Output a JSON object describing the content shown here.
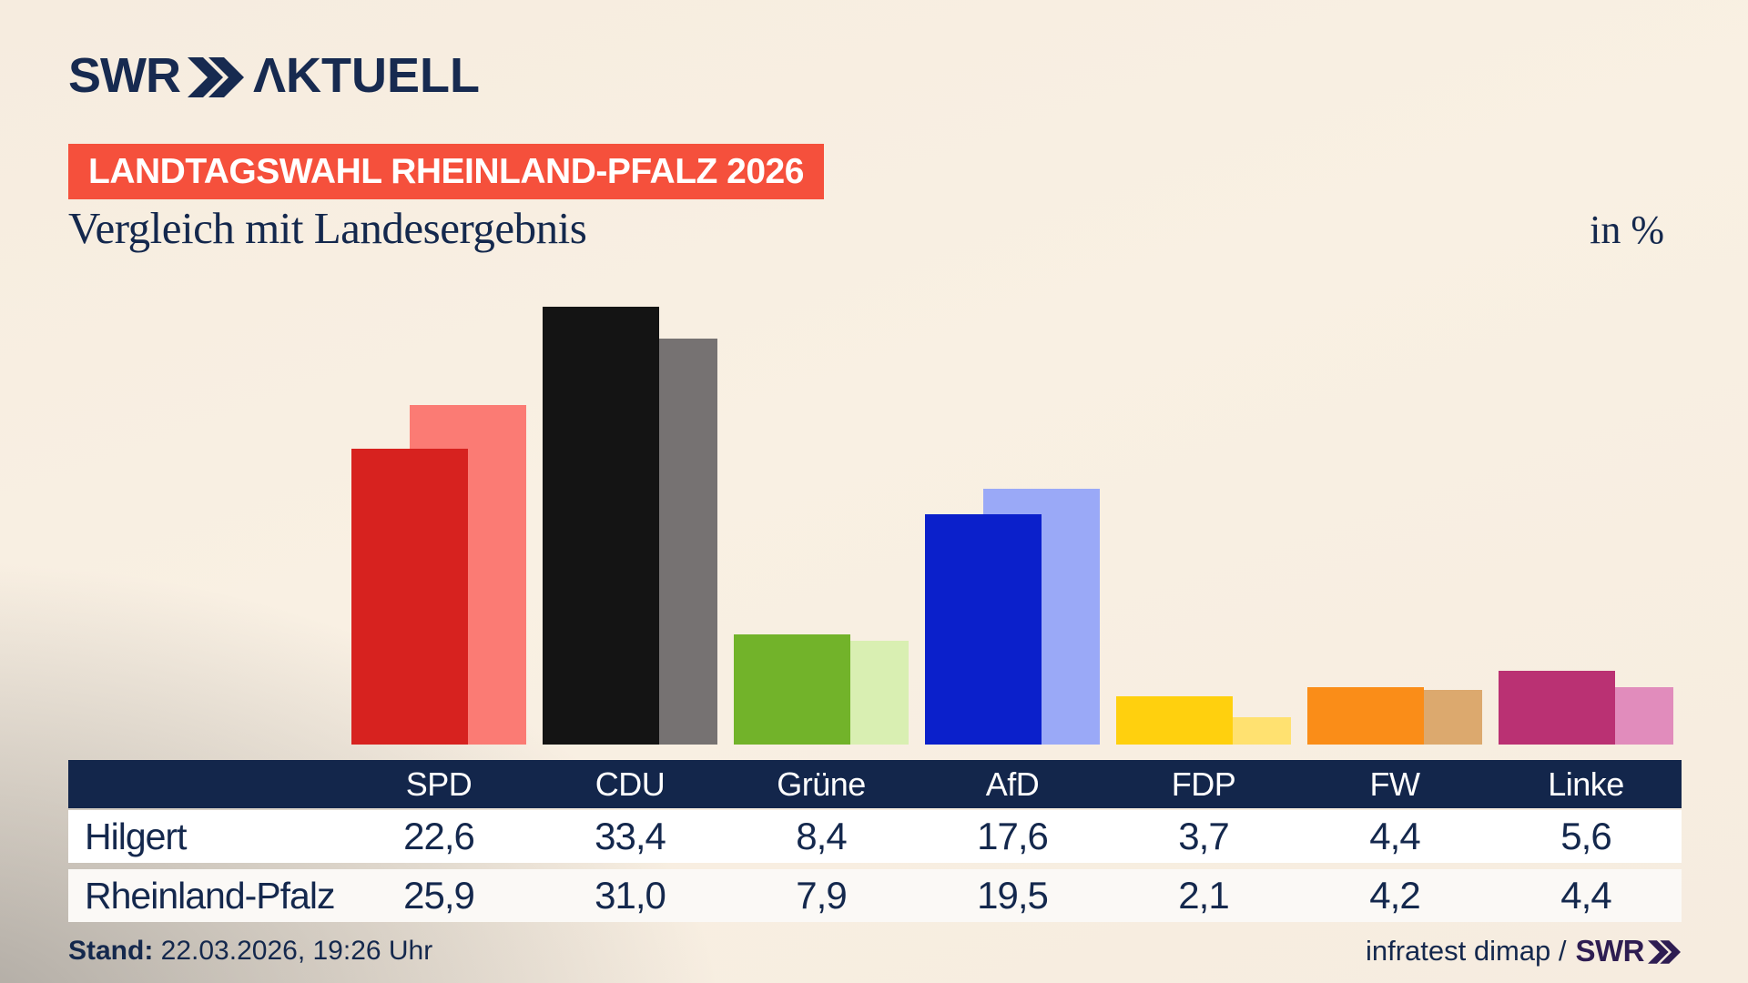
{
  "brand": {
    "logo_swr": "SWR",
    "logo_aktuell": "ΛKTUELL"
  },
  "badge": {
    "label": "LANDTAGSWAHL RHEINLAND-PFALZ 2026",
    "bg": "#f5503c"
  },
  "title": "Vergleich mit Landesergebnis",
  "unit_label": "in %",
  "chart_data": {
    "type": "bar",
    "title": "Vergleich mit Landesergebnis",
    "unit": "%",
    "categories": [
      "SPD",
      "CDU",
      "Grüne",
      "AfD",
      "FDP",
      "FW",
      "Linke"
    ],
    "series": [
      {
        "name": "Hilgert",
        "values": [
          22.6,
          33.4,
          8.4,
          17.6,
          3.7,
          4.4,
          5.6
        ],
        "labels": [
          "22,6",
          "33,4",
          "8,4",
          "17,6",
          "3,7",
          "4,4",
          "5,6"
        ],
        "role": "foreground"
      },
      {
        "name": "Rheinland-Pfalz",
        "values": [
          25.9,
          31.0,
          7.9,
          19.5,
          2.1,
          4.2,
          4.4
        ],
        "labels": [
          "25,9",
          "31,0",
          "7,9",
          "19,5",
          "2,1",
          "4,2",
          "4,4"
        ],
        "role": "background"
      }
    ],
    "party_colors": [
      {
        "party": "SPD",
        "main": "#d7221f",
        "light": "#fb7b74"
      },
      {
        "party": "CDU",
        "main": "#141414",
        "light": "#767272"
      },
      {
        "party": "Grüne",
        "main": "#72b32a",
        "light": "#d9efb2"
      },
      {
        "party": "AfD",
        "main": "#0b20cb",
        "light": "#9aa9f7"
      },
      {
        "party": "FDP",
        "main": "#ffd00e",
        "light": "#ffe170"
      },
      {
        "party": "FW",
        "main": "#fa8d18",
        "light": "#dca96e"
      },
      {
        "party": "Linke",
        "main": "#ba3173",
        "light": "#e18cbc"
      }
    ],
    "ylim": [
      0,
      34
    ],
    "grid": false,
    "legend": "table-rows"
  },
  "footer": {
    "stand_label": "Stand:",
    "stand_value": "22.03.2026, 19:26 Uhr",
    "source_text": "infratest dimap /",
    "source_brand": "SWR"
  },
  "colors": {
    "navy": "#14284d",
    "header_bg": "#13264b",
    "logo_navy": "#172a50",
    "footer_brand_purple": "#2e1d52",
    "badge_red": "#f5503c",
    "background_beige": "#f8efe2"
  }
}
